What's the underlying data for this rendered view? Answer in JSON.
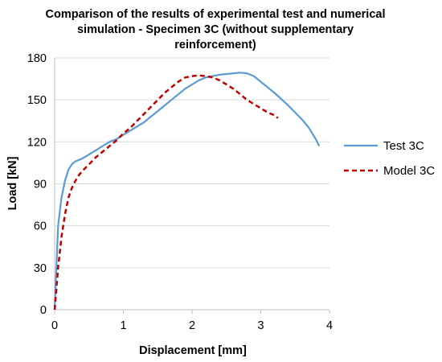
{
  "chart_data": {
    "type": "line",
    "title_lines": [
      "Comparison of the results of experimental test  and numerical",
      "simulation - Specimen 3C (without supplementary",
      "reinforcement)"
    ],
    "xlabel": "Displacement [mm]",
    "ylabel": "Load [kN]",
    "xlim": [
      0,
      4
    ],
    "ylim": [
      0,
      180
    ],
    "x_ticks": [
      "0",
      "1",
      "2",
      "3",
      "4"
    ],
    "y_ticks": [
      "0",
      "30",
      "60",
      "90",
      "120",
      "150",
      "180"
    ],
    "grid": "horizontal",
    "legend_position": "right",
    "series": [
      {
        "name": "Test 3C",
        "color": "#5b9bd5",
        "style": "solid",
        "x": [
          0,
          0.05,
          0.1,
          0.15,
          0.2,
          0.25,
          0.3,
          0.4,
          0.5,
          0.6,
          0.7,
          0.8,
          0.9,
          1.0,
          1.1,
          1.2,
          1.3,
          1.4,
          1.5,
          1.6,
          1.7,
          1.8,
          1.9,
          2.0,
          2.1,
          2.2,
          2.3,
          2.4,
          2.5,
          2.6,
          2.7,
          2.8,
          2.9,
          3.0,
          3.2,
          3.4,
          3.6,
          3.7,
          3.8,
          3.85
        ],
        "y": [
          0,
          60,
          80,
          92,
          100,
          104,
          106,
          108,
          111,
          114,
          117,
          120,
          122,
          125,
          128,
          131,
          134,
          138,
          142,
          146,
          150,
          154,
          158,
          161,
          164,
          166,
          167,
          168,
          168.5,
          169,
          169.5,
          169,
          167,
          163,
          155,
          146,
          136,
          130,
          122,
          117
        ]
      },
      {
        "name": "Model 3C",
        "color": "#c00000",
        "style": "dashed",
        "x": [
          0,
          0.05,
          0.1,
          0.15,
          0.2,
          0.25,
          0.3,
          0.35,
          0.4,
          0.5,
          0.6,
          0.7,
          0.8,
          0.9,
          1.0,
          1.1,
          1.2,
          1.3,
          1.4,
          1.5,
          1.6,
          1.7,
          1.8,
          1.9,
          2.0,
          2.1,
          2.2,
          2.3,
          2.4,
          2.5,
          2.6,
          2.7,
          2.8,
          2.9,
          3.0,
          3.1,
          3.2,
          3.25
        ],
        "y": [
          0,
          30,
          52,
          68,
          80,
          87,
          92,
          96,
          99,
          104,
          109,
          113,
          117,
          121,
          126,
          130,
          135,
          140,
          145,
          150,
          155,
          159,
          163,
          166,
          167,
          167.5,
          167,
          166,
          164,
          161,
          158,
          154,
          150,
          147,
          144,
          141,
          139,
          137
        ]
      }
    ]
  }
}
